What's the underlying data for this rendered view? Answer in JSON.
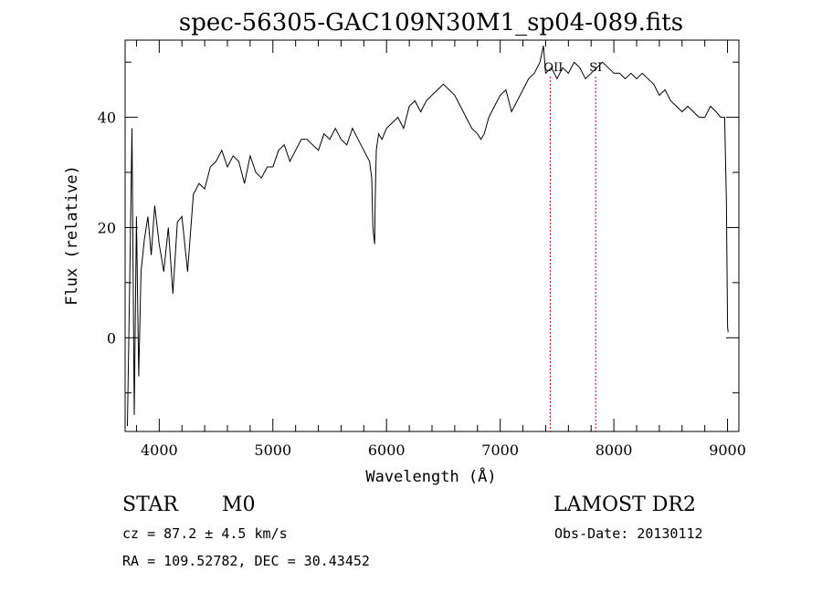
{
  "chart_data": {
    "type": "line",
    "title": "spec-56305-GAC109N30M1_sp04-089.fits",
    "xlabel": "Wavelength (Å)",
    "ylabel": "Flux (relative)",
    "xlim": [
      3700,
      9100
    ],
    "ylim": [
      -17,
      54
    ],
    "grid": false,
    "x_ticks": [
      4000,
      5000,
      6000,
      7000,
      8000,
      9000
    ],
    "x_tick_labels": [
      "4000",
      "5000",
      "6000",
      "7000",
      "8000",
      "9000"
    ],
    "y_ticks": [
      0,
      20,
      40
    ],
    "y_tick_labels": [
      "0",
      "20",
      "40"
    ],
    "series": [
      {
        "color": "#000000",
        "x": [
          3720,
          3740,
          3760,
          3780,
          3800,
          3820,
          3840,
          3870,
          3900,
          3930,
          3960,
          4000,
          4040,
          4080,
          4120,
          4160,
          4200,
          4250,
          4300,
          4350,
          4400,
          4450,
          4500,
          4550,
          4600,
          4650,
          4700,
          4750,
          4800,
          4850,
          4900,
          4950,
          5000,
          5050,
          5100,
          5150,
          5200,
          5250,
          5300,
          5350,
          5400,
          5450,
          5500,
          5550,
          5600,
          5650,
          5700,
          5750,
          5800,
          5850,
          5870,
          5880,
          5890,
          5895,
          5900,
          5910,
          5930,
          5960,
          6000,
          6050,
          6100,
          6150,
          6200,
          6250,
          6300,
          6350,
          6400,
          6450,
          6500,
          6550,
          6600,
          6650,
          6700,
          6750,
          6800,
          6830,
          6860,
          6900,
          6950,
          7000,
          7050,
          7100,
          7150,
          7200,
          7250,
          7300,
          7350,
          7380,
          7400,
          7450,
          7500,
          7550,
          7600,
          7650,
          7700,
          7750,
          7800,
          7850,
          7900,
          7950,
          8000,
          8050,
          8100,
          8150,
          8200,
          8250,
          8300,
          8350,
          8400,
          8450,
          8500,
          8550,
          8600,
          8650,
          8700,
          8750,
          8800,
          8850,
          8900,
          8940,
          8960,
          8975,
          8990,
          9000,
          9005
        ],
        "y": [
          -16,
          10,
          38,
          -14,
          22,
          -7,
          12,
          18,
          22,
          15,
          24,
          17,
          12,
          20,
          8,
          21,
          22,
          12,
          26,
          28,
          27,
          31,
          32,
          34,
          31,
          33,
          32,
          28,
          33,
          30,
          29,
          31,
          31,
          34,
          35,
          32,
          34,
          36,
          36,
          35,
          34,
          37,
          36,
          38,
          36,
          35,
          38,
          36,
          34,
          32,
          29,
          20,
          18,
          17,
          25,
          34,
          37,
          36,
          38,
          39,
          40,
          38,
          42,
          43,
          41,
          43,
          44,
          45,
          46,
          45,
          44,
          42,
          40,
          38,
          37,
          36,
          37,
          40,
          42,
          44,
          45,
          41,
          43,
          45,
          47,
          48,
          50,
          53,
          48,
          49,
          47,
          49,
          48,
          50,
          49,
          47,
          48,
          49,
          50,
          49,
          48,
          48,
          47,
          48,
          47,
          48,
          47,
          46,
          44,
          45,
          43,
          42,
          41,
          42,
          41,
          40,
          40,
          42,
          41,
          40,
          40,
          40,
          25,
          2,
          1
        ]
      }
    ],
    "line_markers": [
      {
        "label": "OII",
        "x": 7440,
        "color": "#cc0000"
      },
      {
        "label": "SI",
        "x": 7840,
        "color": "#cc0000"
      }
    ]
  },
  "footer": {
    "class_label": "STAR",
    "subclass_label": "M0",
    "survey_label": "LAMOST DR2",
    "cz_text": "cz = 87.2 ± 4.5 km/s",
    "obs_date_text": "Obs-Date: 20130112",
    "coords_text": "RA = 109.52782, DEC =  30.43452"
  }
}
